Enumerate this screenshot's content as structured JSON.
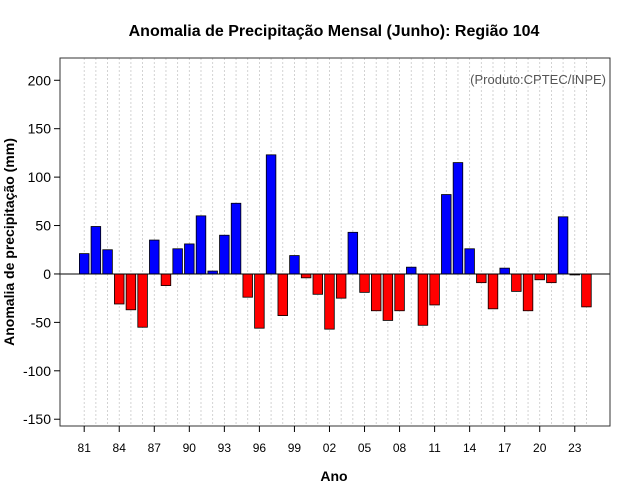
{
  "chart_data": {
    "type": "bar",
    "title": "Anomalia de Precipitação Mensal (Junho): Região 104",
    "xlabel": "Ano",
    "ylabel": "Anomalia de precipitação (mm)",
    "source": "(Produto:CPTEC/INPE)",
    "ylim": [
      -157,
      223
    ],
    "yticks": [
      -150,
      -100,
      -50,
      0,
      50,
      100,
      150,
      200
    ],
    "categories": [
      "81",
      "82",
      "83",
      "84",
      "85",
      "86",
      "87",
      "88",
      "89",
      "90",
      "91",
      "92",
      "93",
      "94",
      "95",
      "96",
      "97",
      "98",
      "99",
      "00",
      "01",
      "02",
      "03",
      "04",
      "05",
      "06",
      "07",
      "08",
      "09",
      "10",
      "11",
      "12",
      "13",
      "14",
      "15",
      "16",
      "17",
      "18",
      "19",
      "20",
      "21",
      "22",
      "23",
      "24"
    ],
    "xtick_labels": [
      "81",
      "84",
      "87",
      "90",
      "93",
      "96",
      "99",
      "02",
      "05",
      "08",
      "11",
      "14",
      "17",
      "20",
      "23"
    ],
    "values": [
      21,
      49,
      25,
      -31,
      -37,
      -55,
      35,
      -12,
      26,
      31,
      60,
      3,
      40,
      73,
      -24,
      -56,
      123,
      -43,
      19,
      -4,
      -21,
      -57,
      -25,
      43,
      -19,
      -38,
      -48,
      -38,
      7,
      -53,
      -32,
      82,
      115,
      26,
      -9,
      -36,
      6,
      -18,
      -38,
      -6,
      -9,
      59,
      -1,
      -34
    ],
    "positive_color": "#0000ff",
    "negative_color": "#ff0000",
    "grid": true
  }
}
